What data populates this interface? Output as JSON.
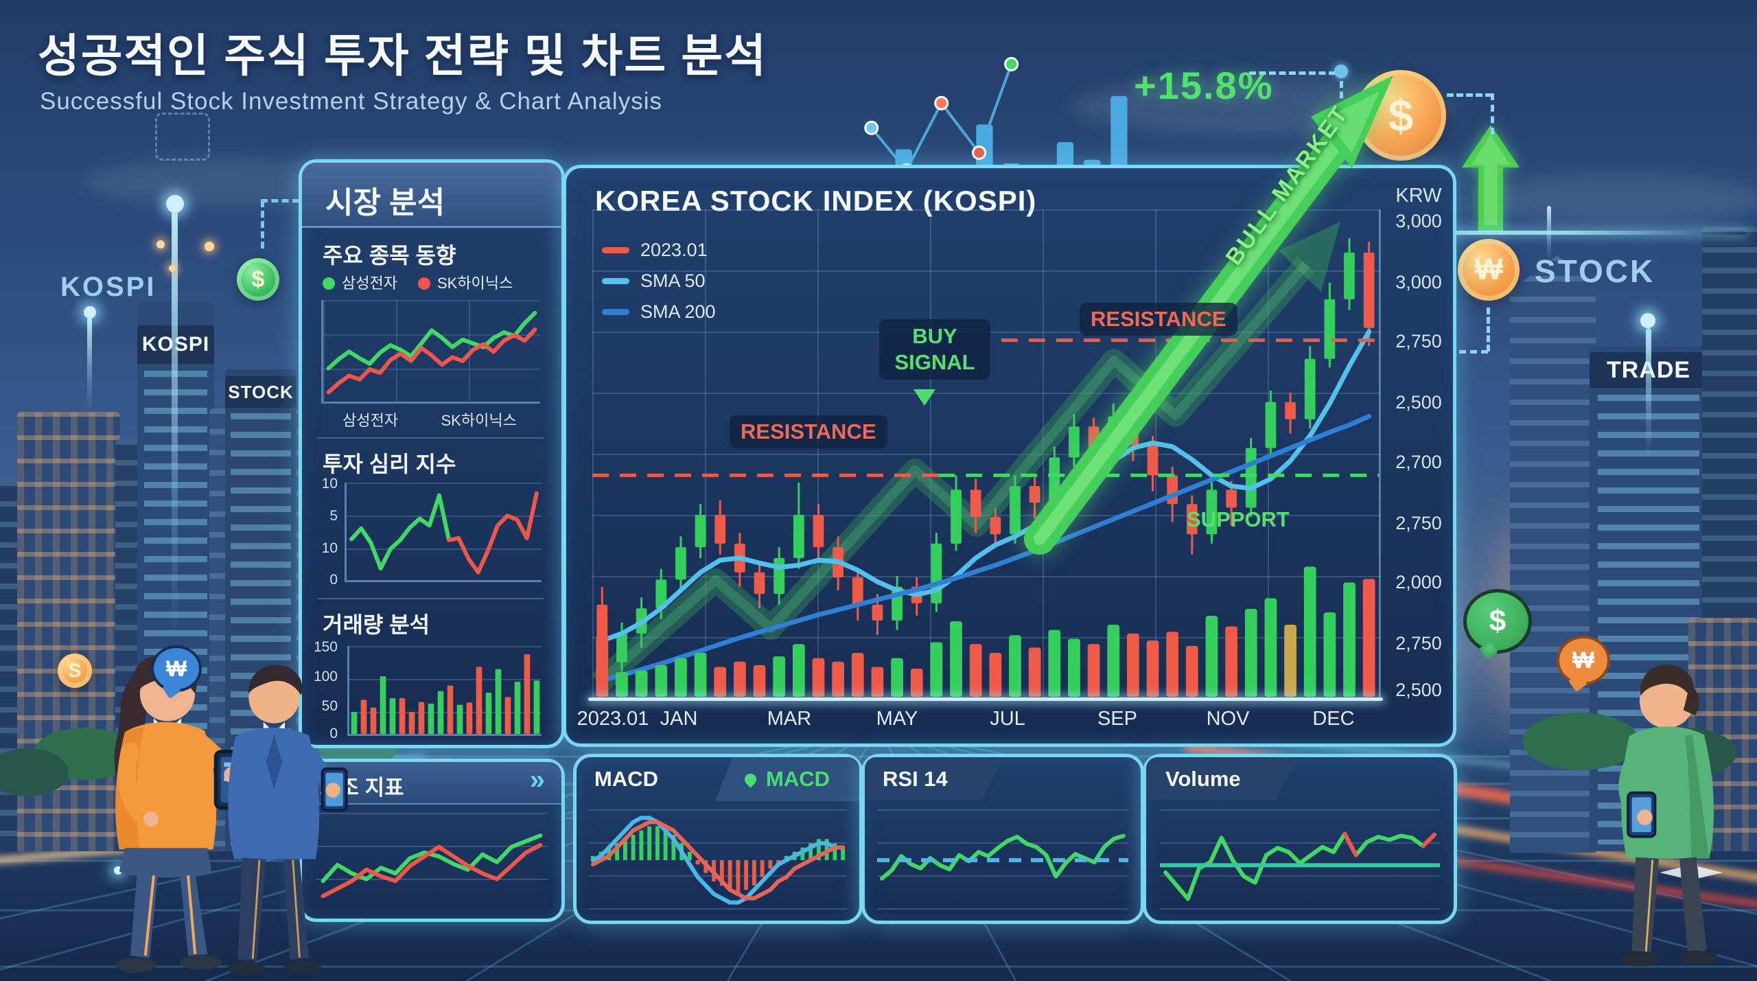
{
  "header": {
    "title_ko": "성공적인 주식 투자 전략 및 차트 분석",
    "subtitle_en": "Successful Stock Investment Strategy & Chart Analysis"
  },
  "top_overlay": {
    "gain": "+15.8%"
  },
  "scene": {
    "left": {
      "kospi_float": "KOSPI",
      "kospi_building": "KOSPI",
      "stock_building": "STOCK",
      "coin_dollar": "$",
      "coin_s": "S",
      "bubble_won": "₩"
    },
    "right": {
      "coin_dollar": "$",
      "coin_won": "₩",
      "stock_label": "STOCK",
      "trade_building": "TRADE",
      "bubble_dollar": "$",
      "bubble_won": "₩"
    }
  },
  "sidebar": {
    "header": "시장 분석",
    "stock_trend": {
      "title": "주요 종목 동향",
      "legend": [
        {
          "label": "삼성전자",
          "color": "#3fd964"
        },
        {
          "label": "SK하이닉스",
          "color": "#f0564a"
        }
      ],
      "x_labels": [
        "삼성전자",
        "SK하이닉스"
      ]
    },
    "sentiment": {
      "title": "투자 심리 지수",
      "y_labels": [
        "10",
        "5",
        "10",
        "0"
      ]
    },
    "volume": {
      "title": "거래량 분석",
      "y_labels": [
        "150",
        "100",
        "50",
        "0"
      ]
    }
  },
  "main_chart": {
    "title": "KOREA STOCK INDEX (KOSPI)",
    "legend": [
      {
        "label": "2023.01",
        "color": "#ef5a49"
      },
      {
        "label": "SMA 50",
        "color": "#52c1ee"
      },
      {
        "label": "SMA 200",
        "color": "#2f7fd6"
      }
    ],
    "unit": "KRW",
    "y_ticks": [
      "3,000",
      "3,000",
      "2,750",
      "2,500",
      "2,700",
      "2,750",
      "2,000",
      "2,750",
      "2,500"
    ],
    "x_ticks": [
      "2023.01",
      "JAN",
      "MAR",
      "MAY",
      "JUL",
      "SEP",
      "NOV",
      "DEC"
    ],
    "labels": {
      "buy_signal": "BUY SIGNAL",
      "resistance_left": "RESISTANCE",
      "resistance_right": "RESISTANCE",
      "support": "SUPPORT",
      "bull_market": "BULL MARKET"
    }
  },
  "bottom_panels": {
    "aux": {
      "title": "보조 지표",
      "chevron": "»"
    },
    "macd": {
      "title": "MACD",
      "tab": "MACD"
    },
    "rsi": {
      "title": "RSI 14"
    },
    "volume": {
      "title": "Volume"
    }
  },
  "chart_data": [
    {
      "id": "kospi_main",
      "type": "candlestick",
      "title": "KOREA STOCK INDEX (KOSPI)",
      "ylabel": "KRW",
      "ylim": [
        2390,
        3070
      ],
      "up": "#35cf5e",
      "down": "#ef5a49",
      "candles": [
        [
          2520,
          2440,
          2415,
          2545
        ],
        [
          2440,
          2480,
          2425,
          2495
        ],
        [
          2480,
          2515,
          2460,
          2530
        ],
        [
          2515,
          2555,
          2500,
          2570
        ],
        [
          2555,
          2600,
          2540,
          2615
        ],
        [
          2600,
          2645,
          2585,
          2660
        ],
        [
          2645,
          2605,
          2590,
          2665
        ],
        [
          2605,
          2565,
          2545,
          2620
        ],
        [
          2565,
          2535,
          2515,
          2580
        ],
        [
          2535,
          2585,
          2520,
          2600
        ],
        [
          2585,
          2645,
          2570,
          2690
        ],
        [
          2645,
          2600,
          2580,
          2660
        ],
        [
          2600,
          2558,
          2540,
          2615
        ],
        [
          2558,
          2520,
          2498,
          2570
        ],
        [
          2520,
          2498,
          2478,
          2535
        ],
        [
          2498,
          2545,
          2485,
          2560
        ],
        [
          2545,
          2522,
          2505,
          2558
        ],
        [
          2522,
          2605,
          2510,
          2620
        ],
        [
          2605,
          2680,
          2595,
          2700
        ],
        [
          2680,
          2642,
          2620,
          2695
        ],
        [
          2642,
          2618,
          2600,
          2655
        ],
        [
          2618,
          2685,
          2605,
          2700
        ],
        [
          2685,
          2662,
          2640,
          2698
        ],
        [
          2662,
          2725,
          2650,
          2740
        ],
        [
          2725,
          2768,
          2712,
          2785
        ],
        [
          2768,
          2726,
          2705,
          2780
        ],
        [
          2726,
          2782,
          2715,
          2800
        ],
        [
          2782,
          2742,
          2720,
          2795
        ],
        [
          2742,
          2700,
          2678,
          2755
        ],
        [
          2700,
          2660,
          2635,
          2712
        ],
        [
          2660,
          2618,
          2590,
          2672
        ],
        [
          2618,
          2680,
          2605,
          2695
        ],
        [
          2680,
          2655,
          2630,
          2692
        ],
        [
          2655,
          2738,
          2642,
          2752
        ],
        [
          2738,
          2802,
          2725,
          2818
        ],
        [
          2802,
          2778,
          2758,
          2815
        ],
        [
          2778,
          2862,
          2765,
          2880
        ],
        [
          2862,
          2945,
          2850,
          2968
        ],
        [
          2945,
          3010,
          2930,
          3030
        ],
        [
          3010,
          2905,
          2880,
          3025
        ]
      ],
      "series": [
        {
          "name": "SMA 50",
          "color": "#52c1ee",
          "w": 7,
          "values": [
            2470,
            2480,
            2495,
            2515,
            2540,
            2565,
            2582,
            2585,
            2578,
            2572,
            2575,
            2582,
            2580,
            2568,
            2552,
            2540,
            2534,
            2540,
            2560,
            2585,
            2603,
            2615,
            2630,
            2648,
            2672,
            2698,
            2720,
            2738,
            2745,
            2740,
            2722,
            2700,
            2685,
            2682,
            2695,
            2720,
            2755,
            2800,
            2852,
            2900
          ]
        },
        {
          "name": "SMA 200",
          "color": "#2f7fd6",
          "w": 7,
          "values": [
            2415,
            2422,
            2430,
            2438,
            2447,
            2456,
            2465,
            2474,
            2482,
            2490,
            2498,
            2506,
            2513,
            2520,
            2527,
            2534,
            2541,
            2549,
            2557,
            2566,
            2575,
            2585,
            2595,
            2606,
            2617,
            2628,
            2639,
            2650,
            2661,
            2672,
            2683,
            2694,
            2705,
            2716,
            2727,
            2738,
            2749,
            2760,
            2770,
            2782
          ]
        }
      ],
      "hlines": [
        {
          "v": 2888,
          "x0": 0.52,
          "x1": 1.0,
          "color": "#ef5a49",
          "dash": "24 16",
          "w": 5,
          "label": "RESISTANCE"
        },
        {
          "v": 2700,
          "x0": 0.0,
          "x1": 0.44,
          "color": "#ef5a49",
          "dash": "24 16",
          "w": 5,
          "label": "RESISTANCE"
        },
        {
          "v": 2700,
          "x0": 0.44,
          "x1": 1.0,
          "color": "#3fd964",
          "dash": "24 16",
          "w": 5,
          "label": "SUPPORT"
        }
      ]
    },
    {
      "id": "kospi_volume",
      "type": "bar",
      "ylim": [
        0,
        160
      ],
      "values": [
        70,
        28,
        30,
        36,
        44,
        50,
        34,
        40,
        36,
        46,
        60,
        44,
        40,
        50,
        34,
        44,
        32,
        62,
        86,
        60,
        50,
        70,
        56,
        76,
        66,
        60,
        82,
        72,
        64,
        74,
        58,
        92,
        80,
        100,
        112,
        82,
        148,
        96,
        130,
        134
      ],
      "colors": [
        "#ef5a49",
        "#35cf5e",
        "#35cf5e",
        "#35cf5e",
        "#35cf5e",
        "#35cf5e",
        "#ef5a49",
        "#ef5a49",
        "#ef5a49",
        "#35cf5e",
        "#35cf5e",
        "#ef5a49",
        "#ef5a49",
        "#ef5a49",
        "#ef5a49",
        "#35cf5e",
        "#ef5a49",
        "#35cf5e",
        "#35cf5e",
        "#ef5a49",
        "#ef5a49",
        "#35cf5e",
        "#ef5a49",
        "#35cf5e",
        "#35cf5e",
        "#ef5a49",
        "#35cf5e",
        "#ef5a49",
        "#ef5a49",
        "#ef5a49",
        "#ef5a49",
        "#35cf5e",
        "#ef5a49",
        "#35cf5e",
        "#35cf5e",
        "#c9a84c",
        "#35cf5e",
        "#35cf5e",
        "#35cf5e",
        "#ef5a49"
      ]
    },
    {
      "id": "stock_trend",
      "type": "line",
      "title": "주요 종목 동향",
      "ylim": [
        0,
        110
      ],
      "series": [
        {
          "name": "삼성전자",
          "color": "#3fd964",
          "w": 6,
          "values": [
            36,
            46,
            54,
            47,
            41,
            53,
            61,
            56,
            49,
            63,
            77,
            69,
            59,
            67,
            63,
            59,
            69,
            75,
            71,
            85,
            96
          ]
        },
        {
          "name": "SK하이닉스",
          "color": "#f0564a",
          "w": 6,
          "values": [
            10,
            20,
            28,
            24,
            35,
            31,
            45,
            52,
            44,
            58,
            50,
            40,
            48,
            44,
            56,
            62,
            54,
            66,
            72,
            66,
            78
          ]
        }
      ]
    },
    {
      "id": "sentiment",
      "type": "line",
      "title": "투자 심리 지수",
      "ylim": [
        0,
        10
      ],
      "slots": 20,
      "series": [
        {
          "name": "sentiment-green",
          "color": "#3fd964",
          "w": 6,
          "values": [
            4.2,
            5.3,
            3.8,
            1.2,
            3.2,
            4.1,
            5.4,
            6.3,
            5.6,
            8.7,
            4.1
          ]
        },
        {
          "name": "sentiment-red",
          "color": "#f0564a",
          "w": 6,
          "start": 10,
          "values": [
            4.1,
            4.3,
            2.2,
            0.8,
            3.0,
            5.6,
            6.6,
            6.2,
            4.3,
            8.9
          ]
        }
      ]
    },
    {
      "id": "volume_analysis",
      "type": "bar",
      "title": "거래량 분석",
      "ylim": [
        0,
        160
      ],
      "values": [
        40,
        62,
        48,
        105,
        65,
        65,
        40,
        58,
        55,
        78,
        88,
        53,
        57,
        122,
        75,
        118,
        67,
        95,
        145,
        97
      ],
      "colors": [
        "#35cf5e",
        "#ef5a49",
        "#ef5a49",
        "#35cf5e",
        "#35cf5e",
        "#ef5a49",
        "#ef5a49",
        "#ef5a49",
        "#35cf5e",
        "#35cf5e",
        "#ef5a49",
        "#35cf5e",
        "#ef5a49",
        "#ef5a49",
        "#35cf5e",
        "#35cf5e",
        "#ef5a49",
        "#35cf5e",
        "#ef5a49",
        "#35cf5e"
      ]
    },
    {
      "id": "aux_indicator",
      "type": "line",
      "title": "보조 지표",
      "ylim": [
        0,
        100
      ],
      "series": [
        {
          "name": "aux-green",
          "color": "#3fd964",
          "w": 6,
          "values": [
            28,
            45,
            36,
            30,
            42,
            36,
            52,
            58,
            54,
            46,
            40,
            56,
            48,
            64,
            70,
            76
          ]
        },
        {
          "name": "aux-red",
          "color": "#f0564a",
          "w": 6,
          "values": [
            12,
            20,
            28,
            40,
            33,
            28,
            44,
            54,
            64,
            54,
            44,
            36,
            30,
            44,
            58,
            66
          ]
        }
      ]
    },
    {
      "id": "macd",
      "type": "macd",
      "title": "MACD",
      "ylim": [
        -12,
        12
      ],
      "pos": "#35cf5e",
      "neg": "#ef5a49",
      "hist": [
        1,
        2,
        3,
        4,
        5,
        6,
        7,
        8,
        8,
        7,
        6,
        4,
        2,
        -1,
        -3,
        -5,
        -6,
        -7,
        -8,
        -7,
        -6,
        -4,
        -2,
        -1,
        1,
        2,
        3,
        4,
        5,
        5,
        4,
        3
      ],
      "series": [
        {
          "name": "macd-line",
          "color": "#49b8e8",
          "w": 6,
          "values": [
            0,
            1,
            3,
            5,
            7,
            9,
            10,
            10,
            9,
            7,
            5,
            2,
            -1,
            -4,
            -6,
            -8,
            -9,
            -10,
            -10,
            -9,
            -7,
            -5,
            -3,
            -1,
            0,
            1,
            2,
            3,
            4,
            4,
            3,
            3
          ]
        },
        {
          "name": "signal-line",
          "color": "#e86456",
          "w": 6,
          "values": [
            -1,
            0,
            1,
            3,
            5,
            7,
            8,
            9,
            9,
            8,
            7,
            5,
            3,
            1,
            -1,
            -3,
            -5,
            -7,
            -8,
            -9,
            -9,
            -8,
            -7,
            -5,
            -4,
            -2,
            -1,
            0,
            1,
            2,
            3,
            3
          ]
        }
      ]
    },
    {
      "id": "rsi",
      "type": "line",
      "title": "RSI 14",
      "ylim": [
        0,
        100
      ],
      "hlines": [
        {
          "v": 50,
          "x0": 0,
          "x1": 1,
          "color": "#4fb4e8",
          "dash": "18 14",
          "w": 6
        }
      ],
      "series": [
        {
          "name": "rsi-line",
          "color": "#3fd964",
          "w": 6,
          "values": [
            32,
            40,
            54,
            46,
            42,
            52,
            45,
            41,
            55,
            49,
            58,
            54,
            62,
            69,
            73,
            66,
            63,
            55,
            34,
            47,
            56,
            52,
            48,
            63,
            71,
            74
          ]
        }
      ]
    },
    {
      "id": "volume_panel",
      "type": "line",
      "title": "Volume",
      "ylim": [
        0,
        100
      ],
      "hlines": [
        {
          "v": 45,
          "x0": 0,
          "x1": 1,
          "color": "#35c9a0",
          "w": 6
        }
      ],
      "series": [
        {
          "name": "volume-line",
          "color": "#3fd964",
          "w": 6,
          "values": [
            38,
            25,
            12,
            42,
            48,
            72,
            50,
            34,
            28,
            55,
            62,
            58,
            47,
            55,
            63,
            58,
            76,
            55,
            68,
            73,
            70,
            74,
            72,
            64,
            75
          ]
        },
        {
          "name": "volume-red-1",
          "color": "#f0564a",
          "w": 6,
          "start": 16,
          "values": [
            76,
            55
          ]
        },
        {
          "name": "volume-red-2",
          "color": "#f0564a",
          "w": 6,
          "start": 23,
          "values": [
            64,
            75
          ]
        }
      ]
    },
    {
      "id": "top_sparkline",
      "type": "sparkline",
      "ylim": [
        0,
        100
      ],
      "color": "#4aa9e0",
      "values": [
        28,
        46,
        24,
        34,
        60,
        38,
        28,
        50,
        40,
        76
      ],
      "line_color": "#49a8d8",
      "dots": [
        {
          "x": 3,
          "y": 42,
          "c": "#6ec8f2"
        },
        {
          "x": 16,
          "y": 66,
          "c": "#ef5a49"
        },
        {
          "x": 29,
          "y": 28,
          "c": "#ff7a55"
        },
        {
          "x": 43,
          "y": 56,
          "c": "#ef5a49"
        },
        {
          "x": 55,
          "y": 6,
          "c": "#3fd964"
        }
      ]
    }
  ]
}
